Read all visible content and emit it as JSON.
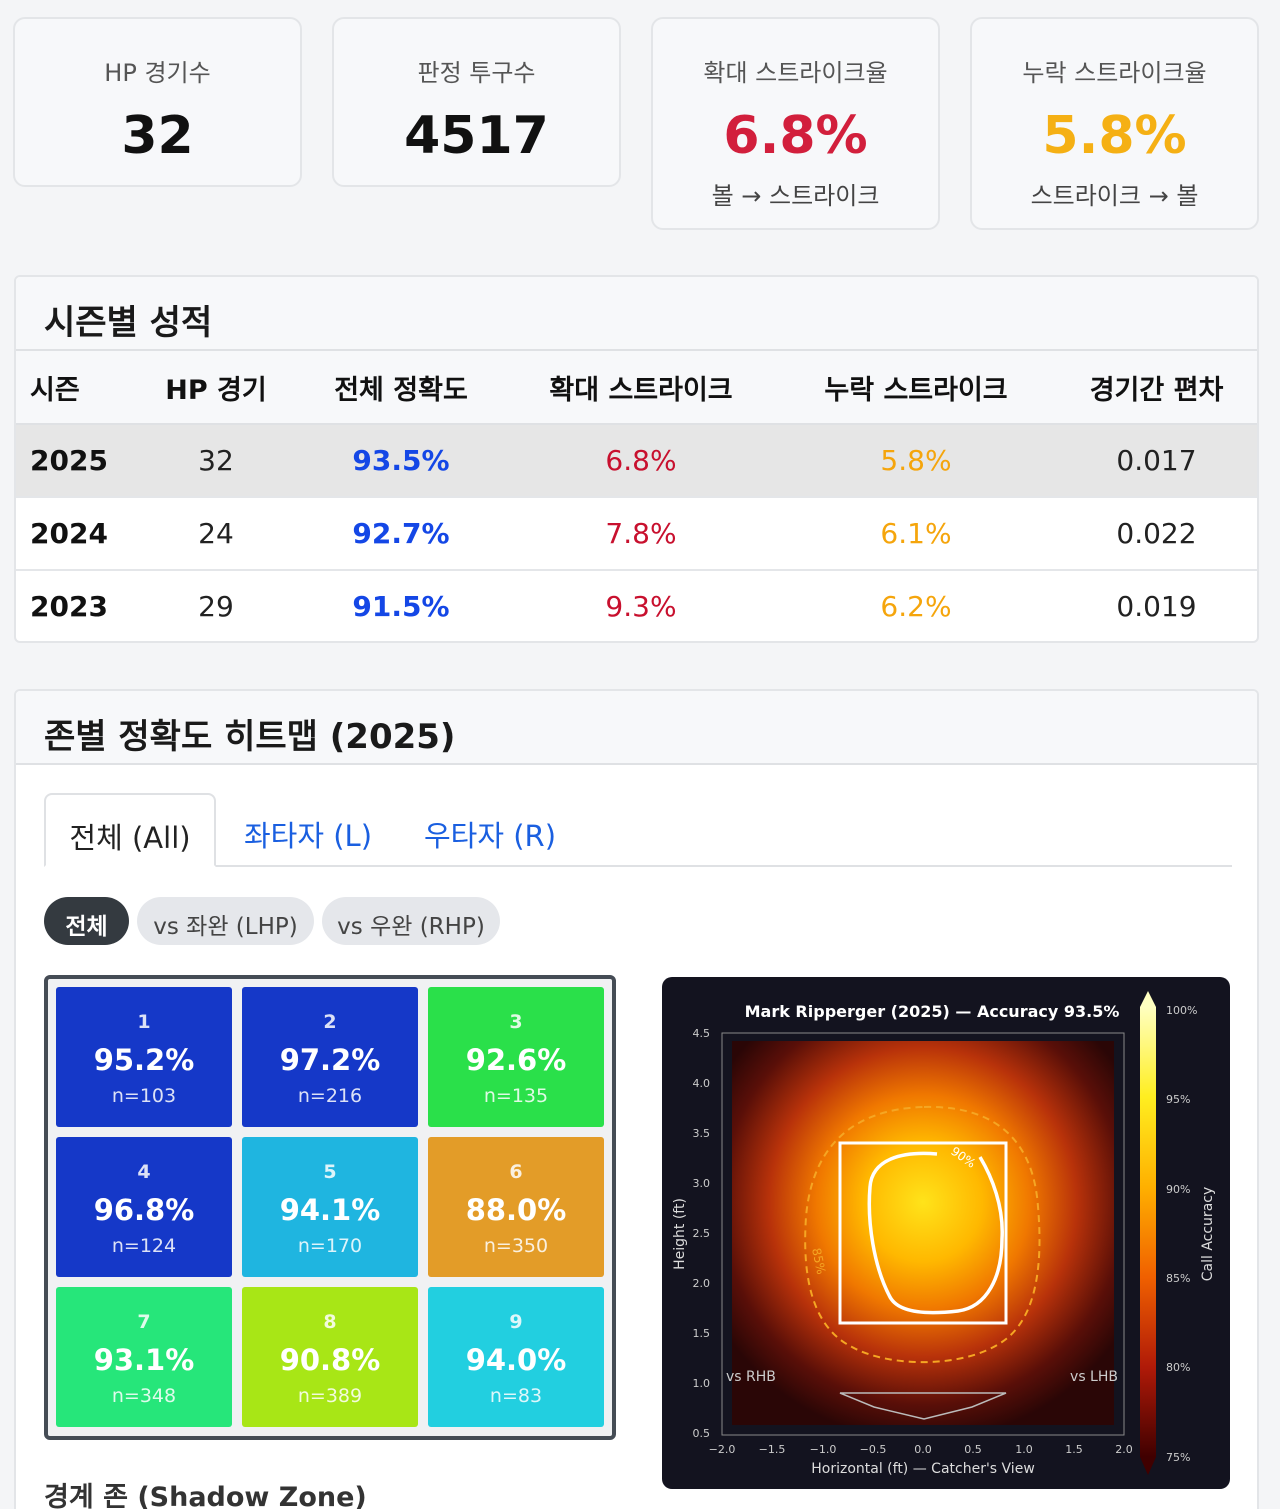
{
  "stats": [
    {
      "label": "HP 경기수",
      "value": "32",
      "sub": "",
      "color": "#111111"
    },
    {
      "label": "판정 투구수",
      "value": "4517",
      "sub": "",
      "color": "#111111"
    },
    {
      "label": "확대 스트라이크율",
      "value": "6.8%",
      "sub": "볼 → 스트라이크",
      "color": "#d21f3c"
    },
    {
      "label": "누락 스트라이크율",
      "value": "5.8%",
      "sub": "스트라이크 → 볼",
      "color": "#f5b014"
    }
  ],
  "season": {
    "title": "시즌별 성적",
    "headers": [
      "시즌",
      "HP 경기",
      "전체 정확도",
      "확대 스트라이크",
      "누락 스트라이크",
      "경기간 편차"
    ],
    "rows": [
      {
        "season": "2025",
        "games": "32",
        "accuracy": "93.5%",
        "expanded": "6.8%",
        "missed": "5.8%",
        "deviation": "0.017"
      },
      {
        "season": "2024",
        "games": "24",
        "accuracy": "92.7%",
        "expanded": "7.8%",
        "missed": "6.1%",
        "deviation": "0.022"
      },
      {
        "season": "2023",
        "games": "29",
        "accuracy": "91.5%",
        "expanded": "9.3%",
        "missed": "6.2%",
        "deviation": "0.019"
      }
    ]
  },
  "heatmap_section": {
    "title": "존별 정확도 히트맵 (2025)",
    "tabs": [
      "전체 (All)",
      "좌타자 (L)",
      "우타자 (R)"
    ],
    "pills": [
      "전체",
      "vs 좌완 (LHP)",
      "vs 우완 (RHP)"
    ],
    "zones": [
      {
        "num": "1",
        "pct": "95.2%",
        "n": "n=103",
        "color": "#1538c8"
      },
      {
        "num": "2",
        "pct": "97.2%",
        "n": "n=216",
        "color": "#1538c8"
      },
      {
        "num": "3",
        "pct": "92.6%",
        "n": "n=135",
        "color": "#2ae04a"
      },
      {
        "num": "4",
        "pct": "96.8%",
        "n": "n=124",
        "color": "#1538c8"
      },
      {
        "num": "5",
        "pct": "94.1%",
        "n": "n=170",
        "color": "#1fb5e0"
      },
      {
        "num": "6",
        "pct": "88.0%",
        "n": "n=350",
        "color": "#e39c28"
      },
      {
        "num": "7",
        "pct": "93.1%",
        "n": "n=348",
        "color": "#26e67a"
      },
      {
        "num": "8",
        "pct": "90.8%",
        "n": "n=389",
        "color": "#a8e616"
      },
      {
        "num": "9",
        "pct": "94.0%",
        "n": "n=83",
        "color": "#22cfe0"
      }
    ],
    "shadow_title": "경계 존 (Shadow Zone)"
  },
  "chart_data": {
    "type": "heatmap",
    "title": "Mark Ripperger (2025) — Accuracy 93.5%",
    "xlabel": "Horizontal (ft) — Catcher's View",
    "ylabel": "Height (ft)",
    "xlim": [
      -2.0,
      2.0
    ],
    "ylim": [
      0.5,
      4.5
    ],
    "x_ticks": [
      "−2.0",
      "−1.5",
      "−1.0",
      "−0.5",
      "0.0",
      "0.5",
      "1.0",
      "1.5",
      "2.0"
    ],
    "y_ticks": [
      "0.5",
      "1.0",
      "1.5",
      "2.0",
      "2.5",
      "3.0",
      "3.5",
      "4.0",
      "4.5"
    ],
    "colorbar_label": "Call Accuracy",
    "colorbar_ticks": [
      "100%",
      "95%",
      "90%",
      "85%",
      "80%",
      "75%"
    ],
    "contour_labels": [
      "90%",
      "85%"
    ],
    "annotations": [
      "vs RHB",
      "vs LHB"
    ]
  }
}
